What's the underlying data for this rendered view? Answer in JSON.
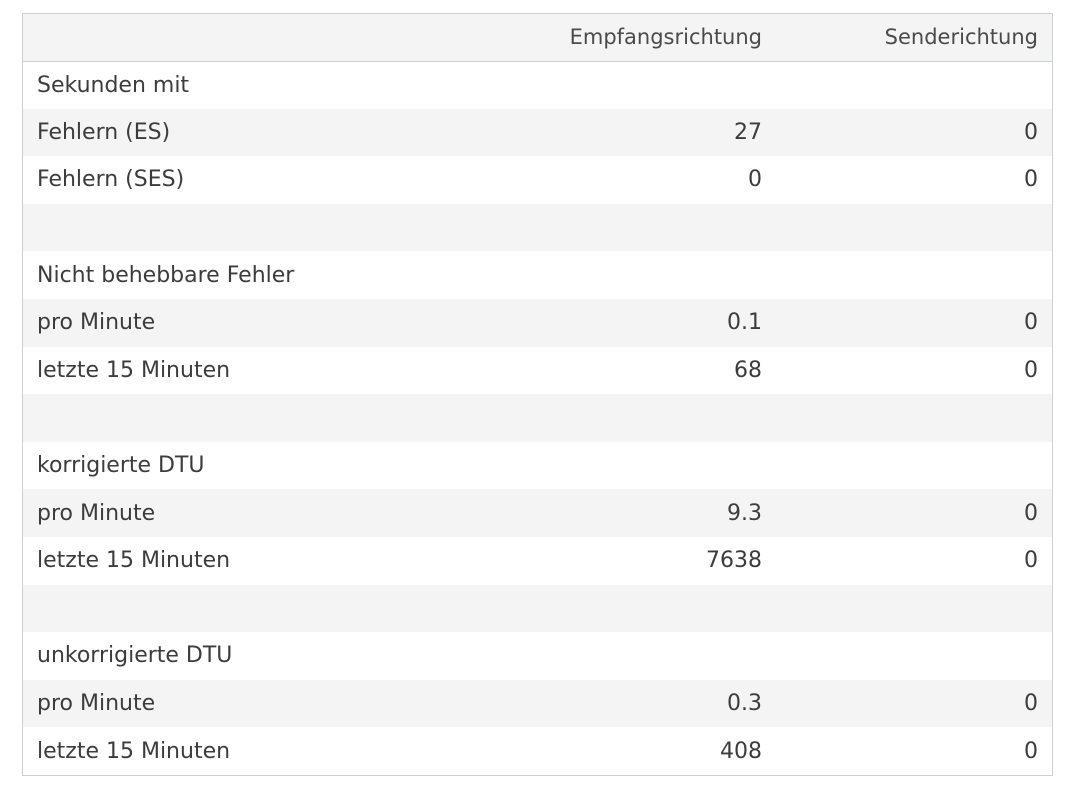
{
  "table": {
    "headers": [
      "",
      "Empfangsrichtung",
      "Senderichtung"
    ],
    "rows": [
      {
        "label": "Sekunden mit",
        "rx": "",
        "tx": ""
      },
      {
        "label": "Fehlern (ES)",
        "rx": "27",
        "tx": "0"
      },
      {
        "label": "Fehlern (SES)",
        "rx": "0",
        "tx": "0"
      },
      {
        "label": "",
        "rx": "",
        "tx": ""
      },
      {
        "label": "Nicht behebbare Fehler",
        "rx": "",
        "tx": ""
      },
      {
        "label": "pro Minute",
        "rx": "0.1",
        "tx": "0"
      },
      {
        "label": "letzte 15 Minuten",
        "rx": "68",
        "tx": "0"
      },
      {
        "label": "",
        "rx": "",
        "tx": ""
      },
      {
        "label": "korrigierte DTU",
        "rx": "",
        "tx": ""
      },
      {
        "label": "pro Minute",
        "rx": "9.3",
        "tx": "0"
      },
      {
        "label": "letzte 15 Minuten",
        "rx": "7638",
        "tx": "0"
      },
      {
        "label": "",
        "rx": "",
        "tx": ""
      },
      {
        "label": "unkorrigierte DTU",
        "rx": "",
        "tx": ""
      },
      {
        "label": "pro Minute",
        "rx": "0.3",
        "tx": "0"
      },
      {
        "label": "letzte 15 Minuten",
        "rx": "408",
        "tx": "0"
      }
    ]
  }
}
